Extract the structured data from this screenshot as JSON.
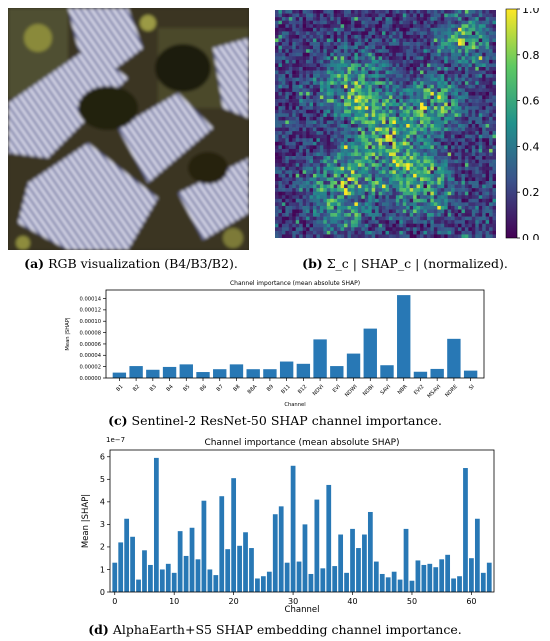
{
  "panel_a": {
    "caption_label": "(a)",
    "caption_text": "RGB visualization (B4/B3/B2)."
  },
  "panel_b": {
    "caption_label": "(b)",
    "caption_text": "Σ_c | SHAP_c | (normalized).",
    "colorbar_ticks": [
      "0.0",
      "0.2",
      "0.4",
      "0.6",
      "0.8",
      "1.0"
    ],
    "colormap": [
      "#440154",
      "#3b528b",
      "#21918c",
      "#5ec962",
      "#fde725"
    ]
  },
  "chart_data": [
    {
      "type": "bar",
      "title": "Channel importance (mean absolute SHAP)",
      "xlabel": "Channel",
      "ylabel": "Mean |SHAP|",
      "ylim": [
        0,
        0.000155
      ],
      "yticks": [
        "0.00000",
        "0.00002",
        "0.00004",
        "0.00006",
        "0.00008",
        "0.00010",
        "0.00012",
        "0.00014"
      ],
      "categories": [
        "B1",
        "B2",
        "B3",
        "B4",
        "B5",
        "B6",
        "B7",
        "B8",
        "B8A",
        "B9",
        "B11",
        "B12",
        "NDVI",
        "EVI",
        "NDWI",
        "NDBI",
        "SAVI",
        "NBR",
        "EVI2",
        "MSAVI",
        "NDRE",
        "SI"
      ],
      "values": [
        9.5e-06,
        2.1e-05,
        1.45e-05,
        1.95e-05,
        2.4e-05,
        1.05e-05,
        1.55e-05,
        2.4e-05,
        1.55e-05,
        1.55e-05,
        2.9e-05,
        2.5e-05,
        6.8e-05,
        2.1e-05,
        4.3e-05,
        8.7e-05,
        2.25e-05,
        0.000146,
        1.1e-05,
        1.6e-05,
        6.9e-05,
        1.3e-05
      ],
      "color": "#2878b5",
      "caption_label": "(c)",
      "caption_text": "Sentinel-2 ResNet-50 SHAP channel importance."
    },
    {
      "type": "bar",
      "title": "Channel importance (mean absolute SHAP)",
      "xlabel": "Channel",
      "ylabel": "Mean |SHAP|",
      "scale_label": "1e−7",
      "ylim": [
        0,
        6.3
      ],
      "yticks": [
        0,
        1,
        2,
        3,
        4,
        5,
        6
      ],
      "xticks": [
        0,
        10,
        20,
        30,
        40,
        50,
        60
      ],
      "x": [
        0,
        1,
        2,
        3,
        4,
        5,
        6,
        7,
        8,
        9,
        10,
        11,
        12,
        13,
        14,
        15,
        16,
        17,
        18,
        19,
        20,
        21,
        22,
        23,
        24,
        25,
        26,
        27,
        28,
        29,
        30,
        31,
        32,
        33,
        34,
        35,
        36,
        37,
        38,
        39,
        40,
        41,
        42,
        43,
        44,
        45,
        46,
        47,
        48,
        49,
        50,
        51,
        52,
        53,
        54,
        55,
        56,
        57,
        58,
        59,
        60,
        61,
        62,
        63
      ],
      "values": [
        1.3,
        2.2,
        3.25,
        2.45,
        0.55,
        1.85,
        1.2,
        5.95,
        1.0,
        1.25,
        0.85,
        2.7,
        1.6,
        2.85,
        1.45,
        4.05,
        1.0,
        0.75,
        4.25,
        1.9,
        5.05,
        2.05,
        2.65,
        1.95,
        0.6,
        0.7,
        0.9,
        3.45,
        3.8,
        1.3,
        5.6,
        1.35,
        3.0,
        0.8,
        4.1,
        1.05,
        4.75,
        1.15,
        2.55,
        0.85,
        2.8,
        1.95,
        2.55,
        3.55,
        1.35,
        0.8,
        0.65,
        0.9,
        0.55,
        2.8,
        0.5,
        1.4,
        1.2,
        1.25,
        1.1,
        1.45,
        1.65,
        0.6,
        0.7,
        5.5,
        1.5,
        3.25,
        0.85,
        1.3
      ],
      "color": "#2878b5",
      "caption_label": "(d)",
      "caption_text": "AlphaEarth+S5 SHAP embedding channel importance."
    }
  ]
}
